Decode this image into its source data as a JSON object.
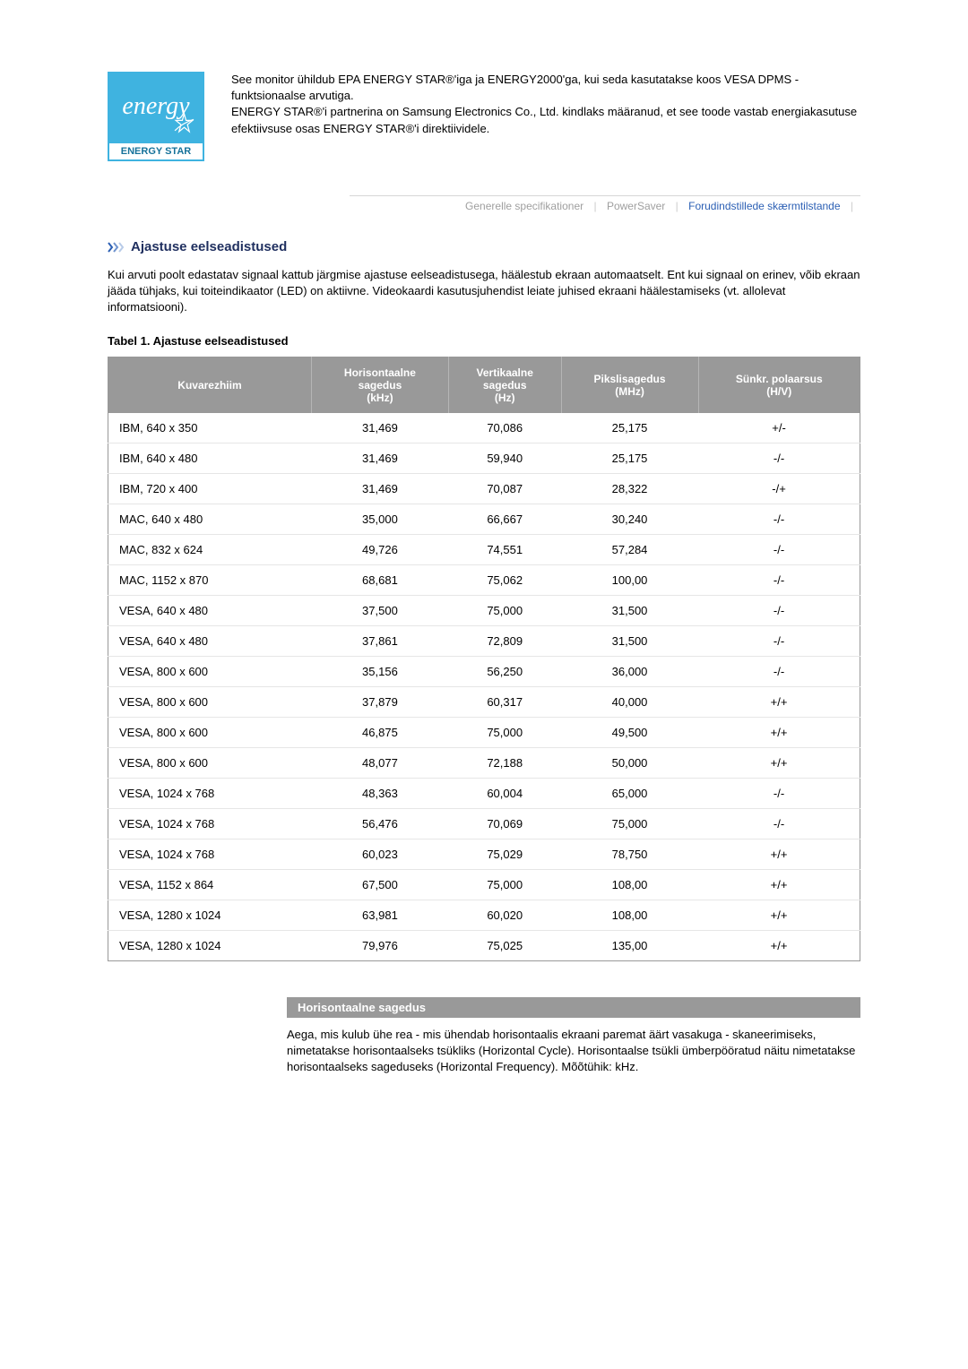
{
  "logo": {
    "script_text": "energy",
    "label": "ENERGY STAR",
    "bg_color": "#3fb3e0",
    "text_color": "#ffffff",
    "border_color": "#16729a"
  },
  "intro": {
    "p1": "See monitor ühildub EPA ENERGY STAR®'iga ja ENERGY2000'ga, kui seda kasutatakse koos VESA DPMS -funktsionaalse arvutiga.",
    "p2": "ENERGY STAR®'i partnerina on Samsung Electronics Co., Ltd. kindlaks määranud, et see toode vastab energiakasutuse efektiivsuse osas ENERGY STAR®'i direktiividele."
  },
  "nav": {
    "tab1": "Generelle specifikationer",
    "tab2": "PowerSaver",
    "tab3": "Forudindstillede skærmtilstande"
  },
  "section": {
    "title": "Ajastuse eelseadistused",
    "para": "Kui arvuti poolt edastatav signaal kattub järgmise ajastuse eelseadistusega, häälestub ekraan automaatselt. Ent kui signaal on erinev, võib ekraan jääda tühjaks, kui toiteindikaator (LED) on aktiivne. Videokaardi kasutusjuhendist leiate juhised ekraani häälestamiseks (vt. allolevat informatsiooni)."
  },
  "table": {
    "caption": "Tabel 1. Ajastuse eelseadistused",
    "header_bg": "#999999",
    "header_fg": "#ffffff",
    "row_border": "#e6e6e6",
    "columns": [
      "Kuvarezhiim",
      "Horisontaalne sagedus (kHz)",
      "Vertikaalne sagedus (Hz)",
      "Pikslisagedus (MHz)",
      "Sünkr. polaarsus (H/V)"
    ],
    "rows": [
      [
        "IBM, 640 x 350",
        "31,469",
        "70,086",
        "25,175",
        "+/-"
      ],
      [
        "IBM, 640 x 480",
        "31,469",
        "59,940",
        "25,175",
        "-/-"
      ],
      [
        "IBM, 720 x 400",
        "31,469",
        "70,087",
        "28,322",
        "-/+"
      ],
      [
        "MAC, 640 x 480",
        "35,000",
        "66,667",
        "30,240",
        "-/-"
      ],
      [
        "MAC, 832 x 624",
        "49,726",
        "74,551",
        "57,284",
        "-/-"
      ],
      [
        "MAC, 1152 x 870",
        "68,681",
        "75,062",
        "100,00",
        "-/-"
      ],
      [
        "VESA, 640 x 480",
        "37,500",
        "75,000",
        "31,500",
        "-/-"
      ],
      [
        "VESA, 640 x 480",
        "37,861",
        "72,809",
        "31,500",
        "-/-"
      ],
      [
        "VESA, 800 x 600",
        "35,156",
        "56,250",
        "36,000",
        "-/-"
      ],
      [
        "VESA, 800 x 600",
        "37,879",
        "60,317",
        "40,000",
        "+/+"
      ],
      [
        "VESA, 800 x 600",
        "46,875",
        "75,000",
        "49,500",
        "+/+"
      ],
      [
        "VESA, 800 x 600",
        "48,077",
        "72,188",
        "50,000",
        "+/+"
      ],
      [
        "VESA, 1024 x 768",
        "48,363",
        "60,004",
        "65,000",
        "-/-"
      ],
      [
        "VESA, 1024 x 768",
        "56,476",
        "70,069",
        "75,000",
        "-/-"
      ],
      [
        "VESA, 1024 x 768",
        "60,023",
        "75,029",
        "78,750",
        "+/+"
      ],
      [
        "VESA, 1152 x 864",
        "67,500",
        "75,000",
        "108,00",
        "+/+"
      ],
      [
        "VESA, 1280 x 1024",
        "63,981",
        "60,020",
        "108,00",
        "+/+"
      ],
      [
        "VESA, 1280 x 1024",
        "79,976",
        "75,025",
        "135,00",
        "+/+"
      ]
    ]
  },
  "definition": {
    "title": "Horisontaalne sagedus",
    "body": "Aega, mis kulub ühe rea - mis ühendab horisontaalis ekraani paremat äärt vasakuga - skaneerimiseks, nimetatakse horisontaalseks tsükliks (Horizontal Cycle). Horisontaalse tsükli ümberpööratud näitu nimetatakse horisontaalseks sageduseks (Horizontal Frequency). Mõõtühik: kHz."
  }
}
